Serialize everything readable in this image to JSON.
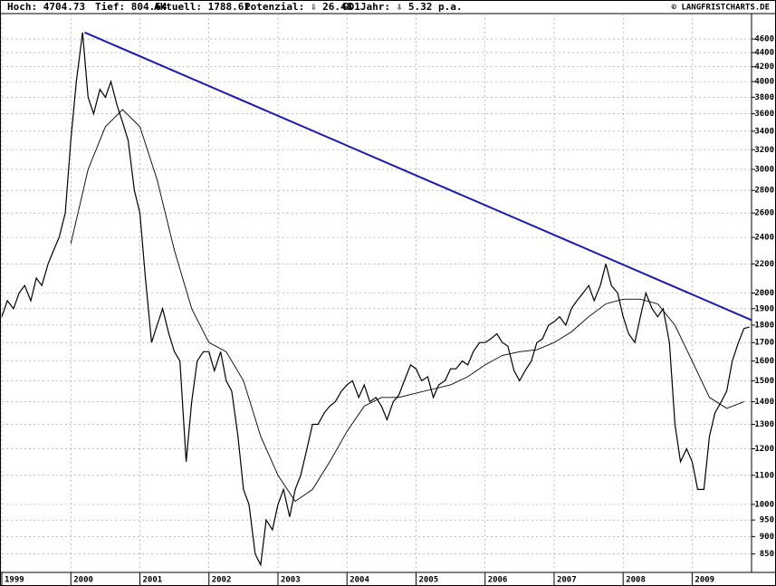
{
  "chart_data": {
    "type": "line",
    "stats": [
      "Hoch: 4704.73",
      "Tief: 804.64",
      "Aktuell: 1788.61",
      "Potenzial: ⇩ 26.48",
      "GD1Jahr: ⇩ 5.32 p.a."
    ],
    "source": "© LANGFRISTCHARTS.DE",
    "log_scale": true,
    "grid": true,
    "xlim": [
      1999,
      2009.86
    ],
    "xticks": [
      1999,
      2000,
      2001,
      2002,
      2003,
      2004,
      2005,
      2006,
      2007,
      2008,
      2009
    ],
    "ylim": [
      800,
      5000
    ],
    "yticks": [
      850,
      900,
      950,
      1000,
      1100,
      1200,
      1300,
      1400,
      1500,
      1600,
      1700,
      1800,
      1900,
      2000,
      2200,
      2400,
      2600,
      2800,
      3000,
      3200,
      3400,
      3600,
      3800,
      4000,
      4200,
      4400,
      4600
    ],
    "series": [
      {
        "color": "#000000",
        "x": [
          1999,
          1999.08,
          1999.17,
          1999.25,
          1999.33,
          1999.42,
          1999.5,
          1999.58,
          1999.67,
          1999.75,
          1999.83,
          1999.92,
          2000,
          2000.08,
          2000.17,
          2000.25,
          2000.33,
          2000.42,
          2000.5,
          2000.58,
          2000.67,
          2000.75,
          2000.83,
          2000.92,
          2001,
          2001.08,
          2001.17,
          2001.25,
          2001.33,
          2001.42,
          2001.5,
          2001.58,
          2001.67,
          2001.75,
          2001.83,
          2001.92,
          2002,
          2002.08,
          2002.17,
          2002.25,
          2002.33,
          2002.42,
          2002.5,
          2002.58,
          2002.67,
          2002.75,
          2002.83,
          2002.92,
          2003,
          2003.08,
          2003.17,
          2003.25,
          2003.33,
          2003.42,
          2003.5,
          2003.58,
          2003.67,
          2003.75,
          2003.83,
          2003.92,
          2004,
          2004.08,
          2004.17,
          2004.25,
          2004.33,
          2004.42,
          2004.5,
          2004.58,
          2004.67,
          2004.75,
          2004.83,
          2004.92,
          2005,
          2005.08,
          2005.17,
          2005.25,
          2005.33,
          2005.42,
          2005.5,
          2005.58,
          2005.67,
          2005.75,
          2005.83,
          2005.92,
          2006,
          2006.08,
          2006.17,
          2006.25,
          2006.33,
          2006.42,
          2006.5,
          2006.58,
          2006.67,
          2006.75,
          2006.83,
          2006.92,
          2007,
          2007.08,
          2007.17,
          2007.25,
          2007.33,
          2007.42,
          2007.5,
          2007.58,
          2007.67,
          2007.75,
          2007.83,
          2007.92,
          2008,
          2008.08,
          2008.17,
          2008.25,
          2008.33,
          2008.42,
          2008.5,
          2008.58,
          2008.67,
          2008.75,
          2008.83,
          2008.92,
          2009,
          2009.08,
          2009.17,
          2009.25,
          2009.33,
          2009.42,
          2009.5,
          2009.58,
          2009.67,
          2009.75,
          2009.83
        ],
        "values": [
          1850,
          1950,
          1900,
          2000,
          2050,
          1950,
          2100,
          2050,
          2200,
          2300,
          2400,
          2600,
          3300,
          4000,
          4700,
          3800,
          3600,
          3900,
          3800,
          4000,
          3700,
          3500,
          3300,
          2800,
          2600,
          2100,
          1700,
          1800,
          1900,
          1750,
          1650,
          1600,
          1150,
          1400,
          1600,
          1650,
          1650,
          1550,
          1650,
          1500,
          1450,
          1250,
          1050,
          1000,
          850,
          820,
          950,
          920,
          1000,
          1050,
          960,
          1050,
          1100,
          1200,
          1300,
          1300,
          1350,
          1380,
          1400,
          1450,
          1480,
          1500,
          1420,
          1480,
          1400,
          1420,
          1380,
          1320,
          1400,
          1430,
          1500,
          1580,
          1560,
          1500,
          1520,
          1420,
          1480,
          1500,
          1560,
          1560,
          1600,
          1580,
          1650,
          1700,
          1700,
          1720,
          1750,
          1700,
          1680,
          1550,
          1500,
          1550,
          1600,
          1700,
          1720,
          1800,
          1820,
          1850,
          1800,
          1900,
          1950,
          2000,
          2050,
          1950,
          2050,
          2200,
          2050,
          2000,
          1850,
          1750,
          1700,
          1850,
          2000,
          1900,
          1850,
          1900,
          1700,
          1300,
          1150,
          1200,
          1150,
          1050,
          1050,
          1250,
          1350,
          1400,
          1450,
          1600,
          1700,
          1780,
          1788.61
        ]
      },
      {
        "color": "#000000",
        "x": [
          2000,
          2000.25,
          2000.5,
          2000.75,
          2001,
          2001.25,
          2001.5,
          2001.75,
          2002,
          2002.25,
          2002.5,
          2002.75,
          2003,
          2003.25,
          2003.5,
          2003.75,
          2004,
          2004.25,
          2004.5,
          2004.75,
          2005,
          2005.25,
          2005.5,
          2005.75,
          2006,
          2006.25,
          2006.5,
          2006.75,
          2007,
          2007.25,
          2007.5,
          2007.75,
          2008,
          2008.25,
          2008.5,
          2008.75,
          2009,
          2009.25,
          2009.5,
          2009.75
        ],
        "values": [
          2350,
          3000,
          3450,
          3650,
          3450,
          2900,
          2300,
          1900,
          1700,
          1650,
          1500,
          1250,
          1100,
          1010,
          1050,
          1150,
          1270,
          1380,
          1420,
          1420,
          1440,
          1460,
          1480,
          1520,
          1580,
          1630,
          1650,
          1660,
          1700,
          1760,
          1850,
          1930,
          1960,
          1960,
          1930,
          1800,
          1600,
          1420,
          1370,
          1400
        ]
      },
      {
        "color": "#1a1ab4",
        "x": [
          2000.2,
          2009.86
        ],
        "values": [
          4700,
          1830
        ]
      }
    ]
  }
}
